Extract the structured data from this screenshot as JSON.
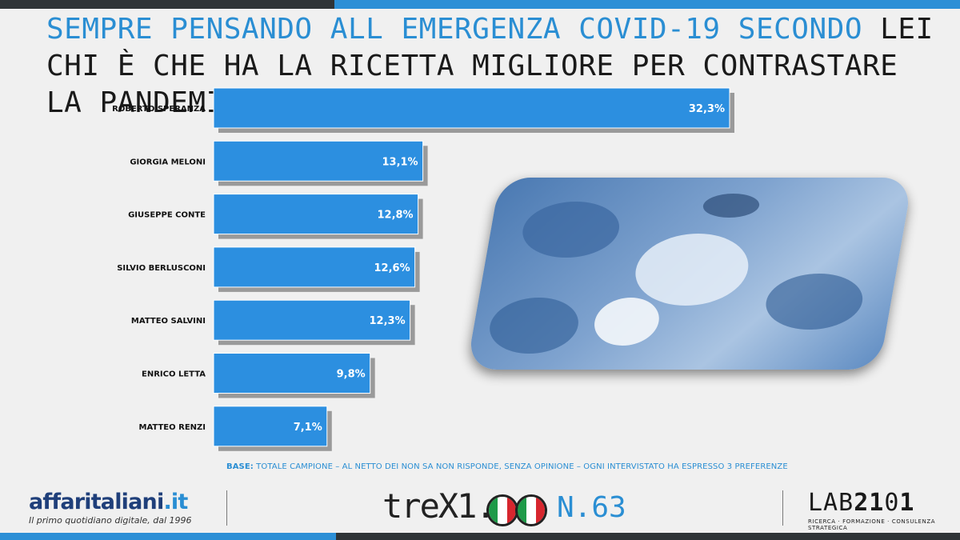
{
  "title": {
    "part1": "SEMPRE PENSANDO ALL EMERGENZA COVID-19 SECONDO",
    "part2": " LEI CHI È CHE HA LA RICETTA MIGLIORE PER CONTRASTARE LA PANDEMIA IN CORSO ?"
  },
  "chart_data": {
    "type": "bar",
    "orientation": "horizontal",
    "categories": [
      "ROBERTO SPERANZA",
      "GIORGIA MELONI",
      "GIUSEPPE CONTE",
      "SILVIO BERLUSCONI",
      "MATTEO SALVINI",
      "ENRICO LETTA",
      "MATTEO RENZI"
    ],
    "values": [
      32.3,
      13.1,
      12.8,
      12.6,
      12.3,
      9.8,
      7.1
    ],
    "value_labels": [
      "32,3%",
      "13,1%",
      "12,8%",
      "12,6%",
      "12,3%",
      "9,8%",
      "7,1%"
    ],
    "grid": false,
    "legend": "none",
    "bar_color": "#2c8fe0"
  },
  "base_note": {
    "label": "BASE:",
    "text": " TOTALE CAMPIONE – AL NETTO DEI NON SA NON RISPONDE, SENZA OPINIONE – OGNI INTERVISTATO HA ESPRESSO 3 PREFERENZE"
  },
  "footer": {
    "affaritaliani_name": "affaritaliani",
    "affaritaliani_tld": ".it",
    "affaritaliani_tag": "Il primo quotidiano digitale, dal 1996",
    "trex_word": "treX1.",
    "trex_issue": "N.63",
    "lab_word_a": "LAB",
    "lab_word_b": "21",
    "lab_word_c": "0",
    "lab_word_d": "1",
    "lab_tag": "RICERCA · FORMAZIONE · CONSULENZA STRATEGICA"
  },
  "colors": {
    "accent": "#2a8ed3",
    "dark_bar": "#2f3437",
    "flag_green": "#1e9a48",
    "flag_white": "#ffffff",
    "flag_red": "#d7262e"
  }
}
